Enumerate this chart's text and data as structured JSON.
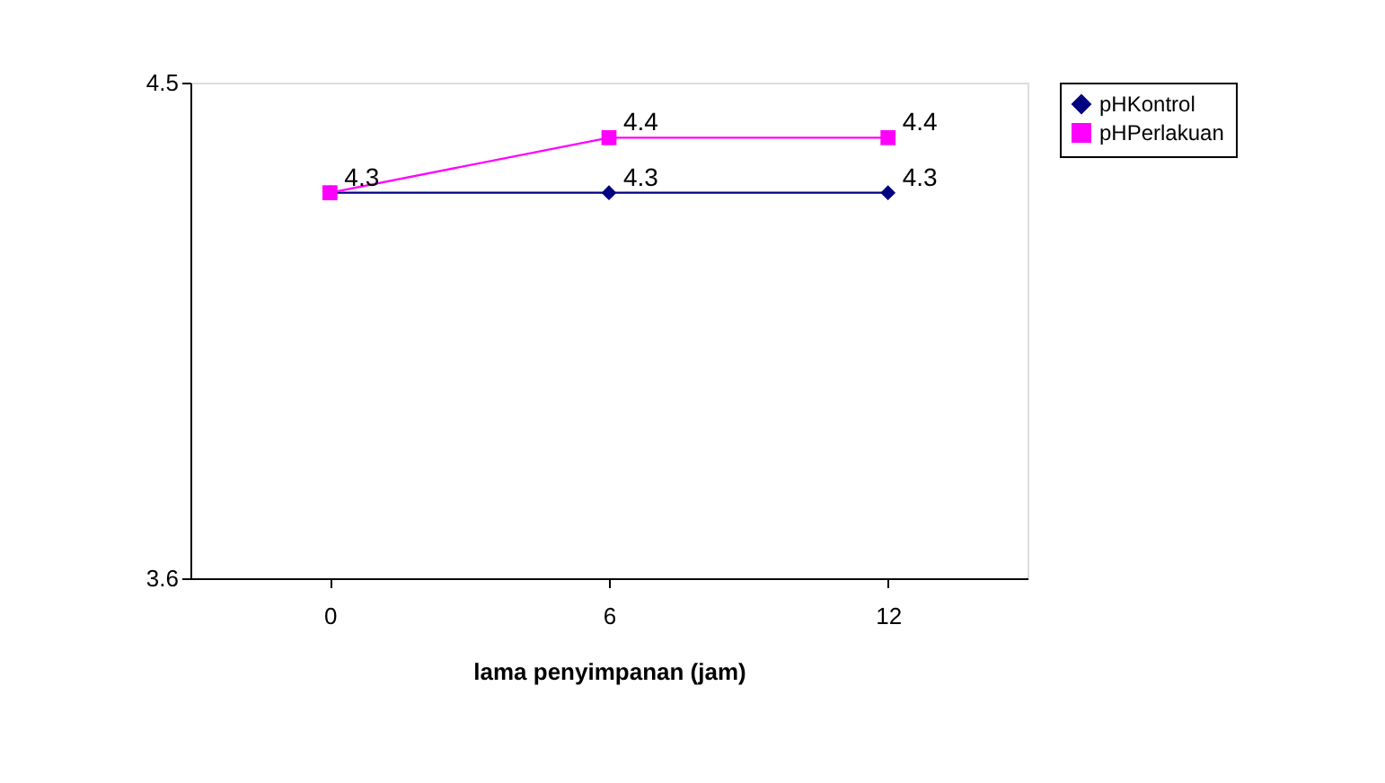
{
  "chart_data": {
    "type": "line",
    "xlabel": "lama penyimpanan (jam)",
    "categories": [
      "0",
      "6",
      "12"
    ],
    "series": [
      {
        "name": "pHKontrol",
        "color": "#000080",
        "marker": "diamond",
        "values": [
          4.3,
          4.3,
          4.3
        ],
        "value_labels": [
          "4.3",
          "4.3",
          "4.3"
        ]
      },
      {
        "name": "pHPerlakuan",
        "color": "#ff00ff",
        "marker": "square",
        "values": [
          4.3,
          4.4,
          4.4
        ],
        "value_labels": [
          null,
          "4.4",
          "4.4"
        ]
      }
    ],
    "ylim": [
      3.6,
      4.5
    ],
    "yticks": [
      3.6,
      4.5
    ],
    "grid": false,
    "legend": "right"
  }
}
